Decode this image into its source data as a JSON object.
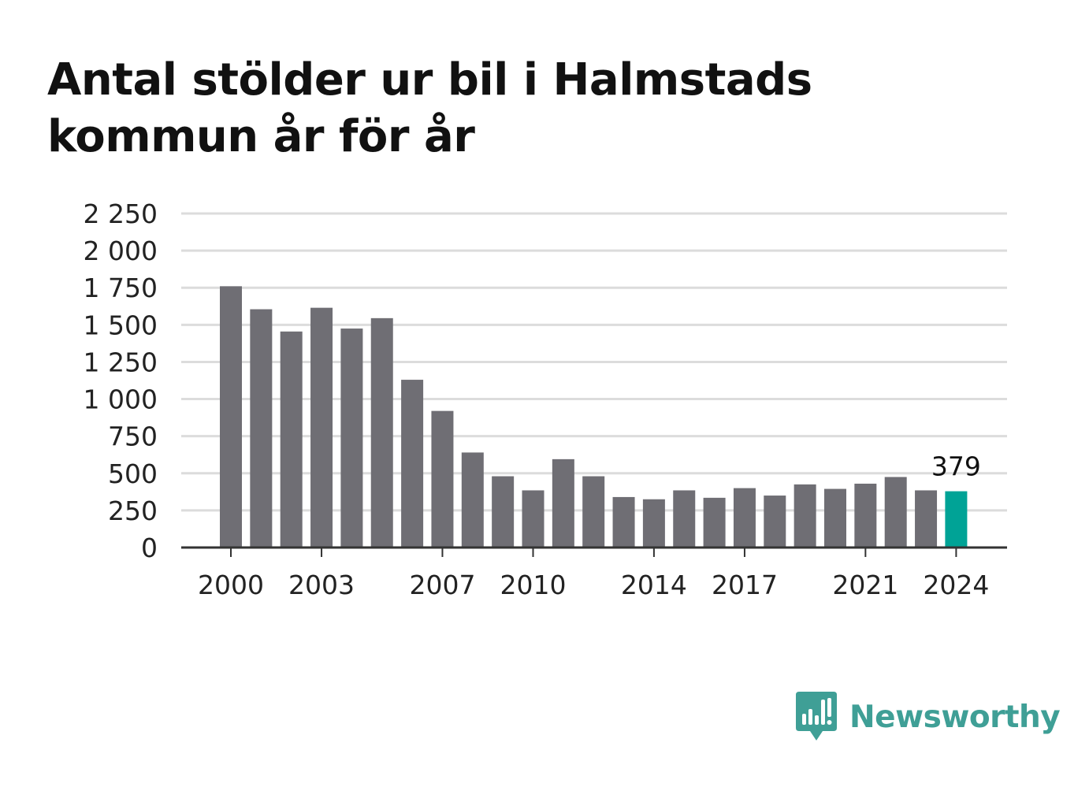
{
  "title": "Antal stölder ur bil i Halmstads kommun år för år",
  "brand": {
    "name": "Newsworthy",
    "icon": "newsworthy-logo-icon"
  },
  "colors": {
    "bar": "#6f6e74",
    "highlight": "#00a396",
    "grid": "#dcdcdc",
    "axis": "#333333",
    "brand": "#3f9f96"
  },
  "chart_data": {
    "type": "bar",
    "title": "Antal stölder ur bil i Halmstads kommun år för år",
    "xlabel": "",
    "ylabel": "",
    "categories": [
      2000,
      2001,
      2002,
      2003,
      2004,
      2005,
      2006,
      2007,
      2008,
      2009,
      2010,
      2011,
      2012,
      2013,
      2014,
      2015,
      2016,
      2017,
      2018,
      2019,
      2020,
      2021,
      2022,
      2023,
      2024
    ],
    "values": [
      1760,
      1605,
      1455,
      1615,
      1475,
      1545,
      1130,
      920,
      640,
      480,
      385,
      595,
      480,
      340,
      325,
      385,
      335,
      400,
      350,
      425,
      395,
      430,
      475,
      385,
      379
    ],
    "ylim": [
      0,
      2250
    ],
    "yticks": [
      0,
      250,
      500,
      750,
      1000,
      1250,
      1500,
      1750,
      2000,
      2250
    ],
    "ytick_labels": [
      "0",
      "250",
      "500",
      "750",
      "1 000",
      "1 250",
      "1 500",
      "1 750",
      "2 000",
      "2 250"
    ],
    "xtick_labels": [
      "2000",
      "2003",
      "2007",
      "2010",
      "2014",
      "2017",
      "2021",
      "2024"
    ],
    "highlight_category": 2024,
    "data_labels": [
      {
        "category": 2024,
        "text": "379"
      }
    ],
    "grid": true,
    "legend": "none"
  }
}
